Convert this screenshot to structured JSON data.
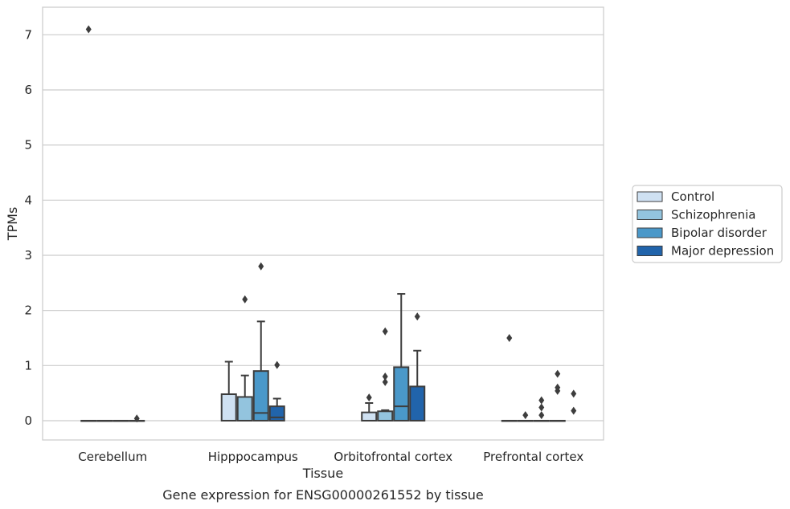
{
  "chart_data": {
    "type": "box",
    "caption": "Gene expression for ENSG00000261552 by tissue",
    "xlabel": "Tissue",
    "ylabel": "TPMs",
    "ylim": [
      -0.35,
      7.5
    ],
    "yticks": [
      0,
      1,
      2,
      3,
      4,
      5,
      6,
      7
    ],
    "grid": true,
    "legend_position": "right",
    "categories": [
      "Cerebellum",
      "Hipppocampus",
      "Orbitofrontal cortex",
      "Prefrontal cortex"
    ],
    "series": [
      {
        "name": "Control",
        "color": "#cfe1f2",
        "boxes": [
          {
            "q1": 0,
            "median": 0,
            "q3": 0,
            "whisker_low": 0,
            "whisker_high": 0,
            "outliers": [
              7.1
            ]
          },
          {
            "q1": 0,
            "median": 0,
            "q3": 0.48,
            "whisker_low": 0,
            "whisker_high": 1.07,
            "outliers": []
          },
          {
            "q1": 0,
            "median": 0,
            "q3": 0.15,
            "whisker_low": 0,
            "whisker_high": 0.32,
            "outliers": [
              0.42
            ]
          },
          {
            "q1": 0,
            "median": 0,
            "q3": 0,
            "whisker_low": 0,
            "whisker_high": 0,
            "outliers": [
              1.5
            ]
          }
        ]
      },
      {
        "name": "Schizophrenia",
        "color": "#93c4de",
        "boxes": [
          {
            "q1": 0,
            "median": 0,
            "q3": 0,
            "whisker_low": 0,
            "whisker_high": 0,
            "outliers": []
          },
          {
            "q1": 0,
            "median": 0,
            "q3": 0.43,
            "whisker_low": 0,
            "whisker_high": 0.82,
            "outliers": [
              2.2
            ]
          },
          {
            "q1": 0,
            "median": 0,
            "q3": 0.17,
            "whisker_low": 0,
            "whisker_high": 0.19,
            "outliers": [
              0.7,
              0.8,
              1.62
            ]
          },
          {
            "q1": 0,
            "median": 0,
            "q3": 0,
            "whisker_low": 0,
            "whisker_high": 0,
            "outliers": [
              0.1
            ]
          }
        ]
      },
      {
        "name": "Bipolar disorder",
        "color": "#4a98c9",
        "boxes": [
          {
            "q1": 0,
            "median": 0,
            "q3": 0,
            "whisker_low": 0,
            "whisker_high": 0,
            "outliers": []
          },
          {
            "q1": 0,
            "median": 0.14,
            "q3": 0.9,
            "whisker_low": 0,
            "whisker_high": 1.8,
            "outliers": [
              2.8
            ]
          },
          {
            "q1": 0,
            "median": 0.26,
            "q3": 0.97,
            "whisker_low": 0,
            "whisker_high": 2.3,
            "outliers": []
          },
          {
            "q1": 0,
            "median": 0,
            "q3": 0,
            "whisker_low": 0,
            "whisker_high": 0,
            "outliers": [
              0.1,
              0.24,
              0.37
            ]
          }
        ]
      },
      {
        "name": "Major depression",
        "color": "#2164ab",
        "boxes": [
          {
            "q1": 0,
            "median": 0,
            "q3": 0,
            "whisker_low": 0,
            "whisker_high": 0,
            "outliers": [
              0.04
            ]
          },
          {
            "q1": 0,
            "median": 0.06,
            "q3": 0.26,
            "whisker_low": 0,
            "whisker_high": 0.4,
            "outliers": [
              1.01
            ]
          },
          {
            "q1": 0,
            "median": 0,
            "q3": 0.62,
            "whisker_low": 0,
            "whisker_high": 1.27,
            "outliers": [
              1.89
            ]
          },
          {
            "q1": 0,
            "median": 0,
            "q3": 0,
            "whisker_low": 0,
            "whisker_high": 0,
            "outliers": [
              0.54,
              0.6,
              0.85
            ]
          }
        ]
      }
    ],
    "extra_points": [
      {
        "category": "Prefrontal cortex",
        "value": 0.49
      },
      {
        "category": "Prefrontal cortex",
        "value": 0.18
      }
    ]
  }
}
